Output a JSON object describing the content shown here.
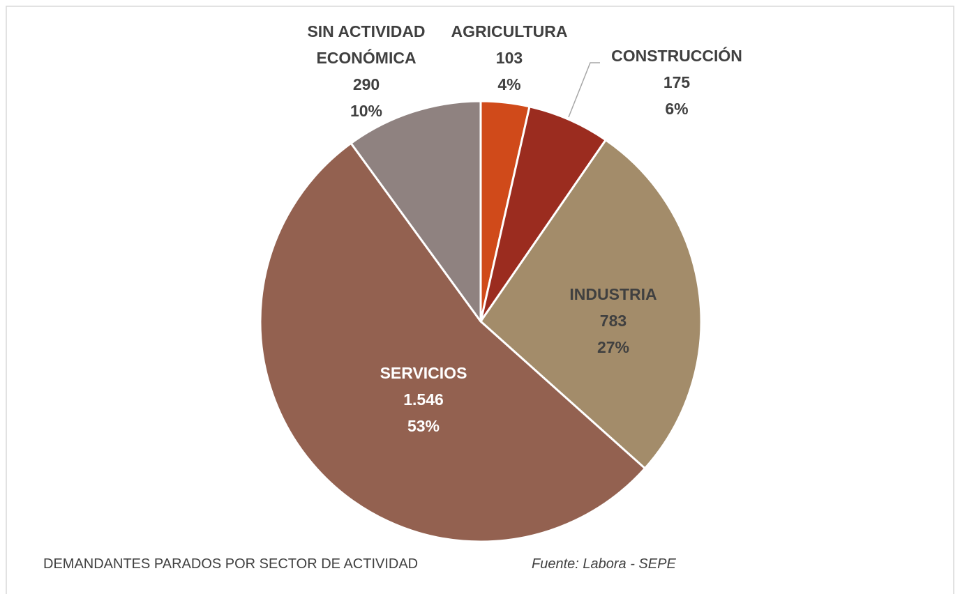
{
  "chart_data": {
    "type": "pie",
    "categories": [
      "AGRICULTURA",
      "CONSTRUCCIÓN",
      "INDUSTRIA",
      "SERVICIOS",
      "SIN ACTIVIDAD ECONÓMICA"
    ],
    "values": [
      103,
      175,
      783,
      1546,
      290
    ],
    "value_labels": [
      "103",
      "175",
      "783",
      "1.546",
      "290"
    ],
    "percent_labels": [
      "4%",
      "6%",
      "27%",
      "53%",
      "10%"
    ],
    "colors": [
      "#d04a1a",
      "#9b2c1f",
      "#a38c6a",
      "#936150",
      "#8f8280"
    ],
    "title": "DEMANDANTES PARADOS POR SECTOR DE ACTIVIDAD",
    "source": "Fuente: Labora - SEPE"
  }
}
